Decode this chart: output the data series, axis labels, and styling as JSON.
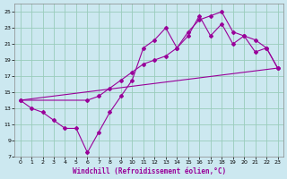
{
  "xlabel": "Windchill (Refroidissement éolien,°C)",
  "background_color": "#cce8f0",
  "grid_color": "#99ccbb",
  "line_color": "#990099",
  "xlim": [
    -0.5,
    23.5
  ],
  "ylim": [
    7,
    26
  ],
  "xticks": [
    0,
    1,
    2,
    3,
    4,
    5,
    6,
    7,
    8,
    9,
    10,
    11,
    12,
    13,
    14,
    15,
    16,
    17,
    18,
    19,
    20,
    21,
    22,
    23
  ],
  "yticks": [
    7,
    9,
    11,
    13,
    15,
    17,
    19,
    21,
    23,
    25
  ],
  "curve1_x": [
    0,
    1,
    2,
    3,
    4,
    5,
    6,
    7,
    8,
    9,
    10,
    11,
    12,
    13,
    14,
    15,
    16,
    17,
    18,
    19,
    20,
    21,
    22,
    23
  ],
  "curve1_y": [
    14.0,
    13.0,
    12.5,
    11.5,
    10.5,
    10.5,
    7.5,
    10.0,
    12.5,
    14.5,
    16.5,
    20.5,
    21.5,
    23.0,
    20.5,
    22.5,
    24.0,
    24.5,
    25.0,
    22.5,
    22.0,
    20.0,
    20.5,
    18.0
  ],
  "curve2_x": [
    0,
    6,
    7,
    8,
    9,
    10,
    11,
    12,
    13,
    14,
    15,
    16,
    17,
    18,
    19,
    20,
    21,
    22,
    23
  ],
  "curve2_y": [
    14.0,
    14.0,
    14.5,
    15.5,
    16.5,
    17.5,
    18.5,
    19.0,
    19.5,
    20.5,
    22.0,
    24.5,
    22.0,
    23.5,
    21.0,
    22.0,
    21.5,
    20.5,
    18.0
  ],
  "curve3_x": [
    0,
    23
  ],
  "curve3_y": [
    14.0,
    18.0
  ]
}
